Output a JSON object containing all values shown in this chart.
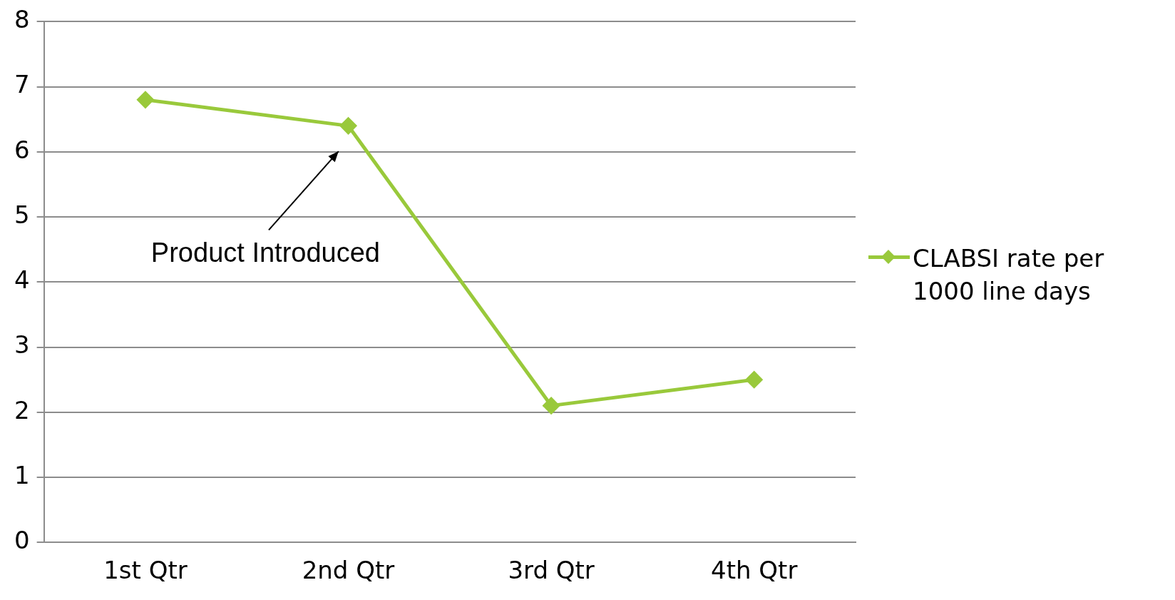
{
  "chart_data": {
    "type": "line",
    "categories": [
      "1st Qtr",
      "2nd Qtr",
      "3rd Qtr",
      "4th Qtr"
    ],
    "series": [
      {
        "name": "CLABSI rate per 1000 line days",
        "color": "#99c93b",
        "values": [
          6.8,
          6.4,
          2.1,
          2.5
        ]
      }
    ],
    "ylim": [
      0,
      8
    ],
    "yticks": [
      0,
      1,
      2,
      3,
      4,
      5,
      6,
      7,
      8
    ],
    "grid": "y",
    "legend": "right",
    "marker": "diamond",
    "line_style": "solid",
    "annotations": [
      "Product Introduced"
    ]
  }
}
